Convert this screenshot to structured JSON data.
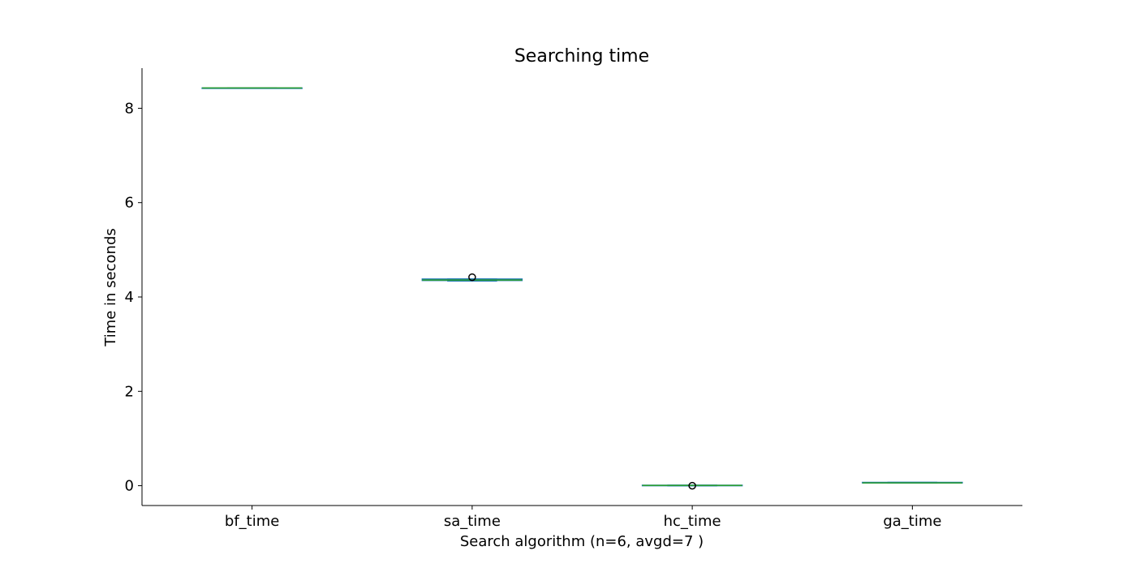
{
  "chart_data": {
    "type": "box",
    "title": "Searching time",
    "xlabel": "Search algorithm (n=6, avgd=7 )",
    "ylabel": "Time in seconds",
    "categories": [
      "bf_time",
      "sa_time",
      "hc_time",
      "ga_time"
    ],
    "ylim": [
      -0.42,
      8.85
    ],
    "yticks": [
      0,
      2,
      4,
      6,
      8
    ],
    "grid": false,
    "box_color": "#1f77b4",
    "median_color": "#2ca02c",
    "boxes": [
      {
        "name": "bf_time",
        "whislo": 8.43,
        "q1": 8.43,
        "median": 8.43,
        "q3": 8.43,
        "whishi": 8.43,
        "fliers": []
      },
      {
        "name": "sa_time",
        "whislo": 4.34,
        "q1": 4.35,
        "median": 4.36,
        "q3": 4.38,
        "whishi": 4.38,
        "fliers": [
          4.42
        ]
      },
      {
        "name": "hc_time",
        "whislo": 0.0,
        "q1": 0.0,
        "median": 0.005,
        "q3": 0.01,
        "whishi": 0.01,
        "fliers": [
          0.0
        ]
      },
      {
        "name": "ga_time",
        "whislo": 0.06,
        "q1": 0.06,
        "median": 0.06,
        "q3": 0.07,
        "whishi": 0.07,
        "fliers": []
      }
    ]
  }
}
